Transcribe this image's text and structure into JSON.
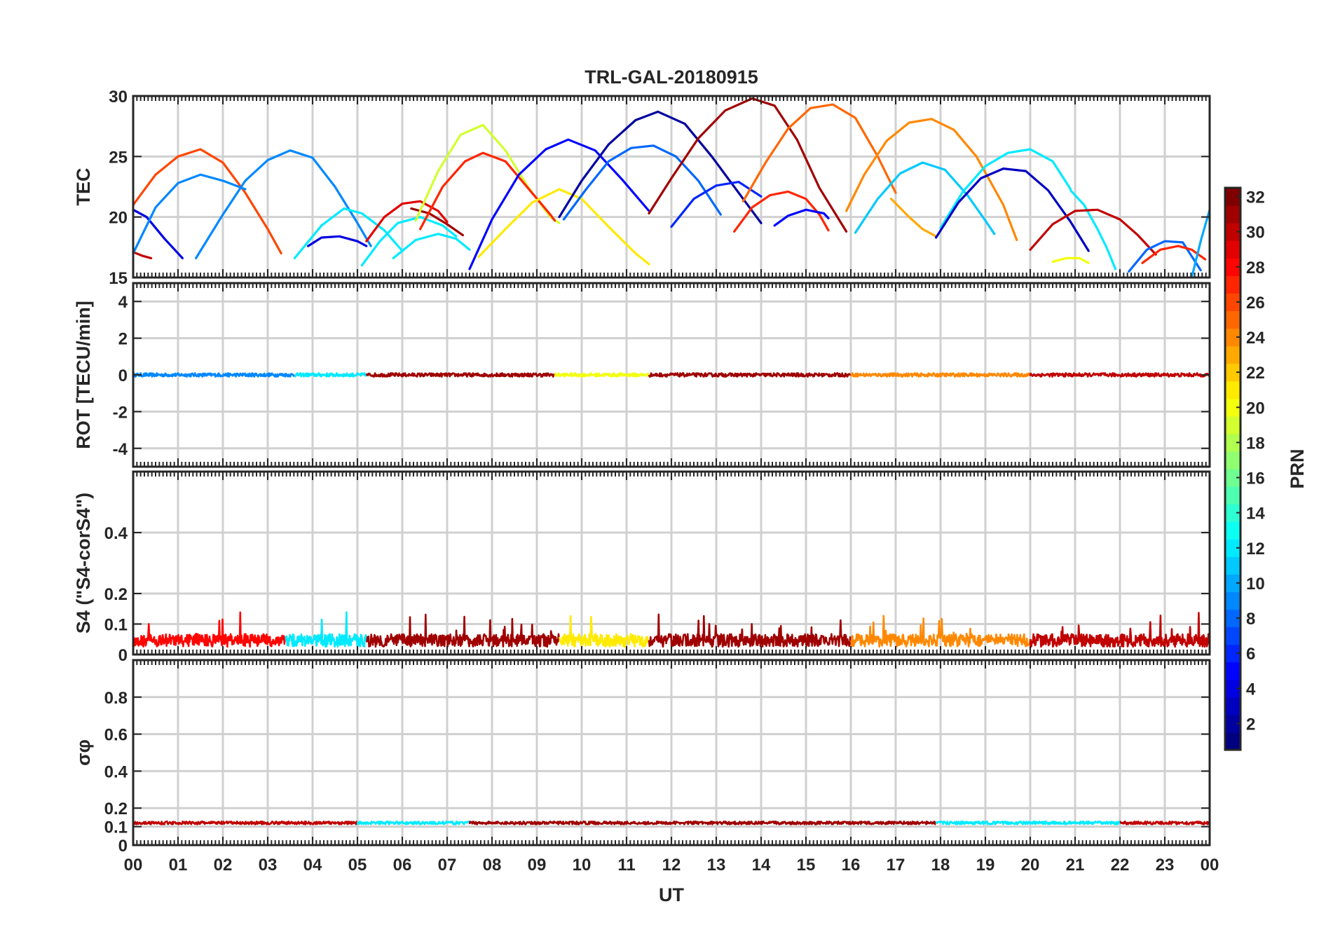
{
  "chart_data": {
    "type": "line",
    "title": "TRL-GAL-20180915",
    "xlabel": "UT",
    "xlim": [
      0,
      24
    ],
    "x_tick_labels": [
      "00",
      "01",
      "02",
      "03",
      "04",
      "05",
      "06",
      "07",
      "08",
      "09",
      "10",
      "11",
      "12",
      "13",
      "14",
      "15",
      "16",
      "17",
      "18",
      "19",
      "20",
      "21",
      "22",
      "23",
      "00"
    ],
    "colorbar": {
      "label": "PRN",
      "range": [
        1,
        32
      ],
      "tick_labels": [
        "2",
        "4",
        "6",
        "8",
        "10",
        "12",
        "14",
        "16",
        "18",
        "20",
        "22",
        "24",
        "26",
        "28",
        "30",
        "32"
      ],
      "colormap": "jet"
    },
    "panels": [
      {
        "id": "tec",
        "ylabel": "TEC",
        "ylim": [
          15,
          30
        ],
        "y_ticks": [
          15,
          20,
          25,
          30
        ],
        "y_tick_labels": [
          "15",
          "20",
          "25",
          "30"
        ],
        "series": [
          {
            "prn": 30,
            "x": [
              0.0,
              0.2,
              0.4
            ],
            "y": [
              17.1,
              16.8,
              16.6
            ]
          },
          {
            "prn": 4,
            "x": [
              0.0,
              0.3,
              0.7,
              1.1
            ],
            "y": [
              20.6,
              20.0,
              18.2,
              16.6
            ]
          },
          {
            "prn": 26,
            "x": [
              0.0,
              0.5,
              1.0,
              1.5,
              2.0,
              2.5,
              3.0,
              3.3
            ],
            "y": [
              21.0,
              23.5,
              25.0,
              25.6,
              24.5,
              22.0,
              19.0,
              17.0
            ]
          },
          {
            "prn": 9,
            "x": [
              0.0,
              0.5,
              1.0,
              1.5,
              2.0,
              2.5
            ],
            "y": [
              17.0,
              20.8,
              22.8,
              23.5,
              23.0,
              22.3
            ]
          },
          {
            "prn": 9,
            "x": [
              1.4,
              2.0,
              2.5,
              3.0,
              3.5,
              4.0,
              4.5,
              5.0,
              5.3
            ],
            "y": [
              16.6,
              20.2,
              23.0,
              24.7,
              25.5,
              24.9,
              22.5,
              19.5,
              17.6
            ]
          },
          {
            "prn": 12,
            "x": [
              3.6,
              4.2,
              4.7,
              5.1,
              5.6,
              6.0
            ],
            "y": [
              16.6,
              19.3,
              20.7,
              20.3,
              18.9,
              17.2
            ]
          },
          {
            "prn": 4,
            "x": [
              3.9,
              4.2,
              4.6,
              5.0,
              5.2
            ],
            "y": [
              17.6,
              18.3,
              18.4,
              18.0,
              17.6
            ]
          },
          {
            "prn": 29,
            "x": [
              5.2,
              5.6,
              6.0,
              6.4,
              6.8,
              7.0
            ],
            "y": [
              18.0,
              20.0,
              21.1,
              21.3,
              20.5,
              19.6
            ]
          },
          {
            "prn": 12,
            "x": [
              5.1,
              5.5,
              5.9,
              6.4,
              6.9,
              7.2
            ],
            "y": [
              16.0,
              18.0,
              19.5,
              20.0,
              19.3,
              18.4
            ]
          },
          {
            "prn": 12,
            "x": [
              5.8,
              6.3,
              6.8,
              7.2,
              7.5
            ],
            "y": [
              16.6,
              18.1,
              18.6,
              18.2,
              17.3
            ]
          },
          {
            "prn": 31,
            "x": [
              6.2,
              6.6,
              7.0,
              7.35
            ],
            "y": [
              20.7,
              20.3,
              19.4,
              18.5
            ]
          },
          {
            "prn": 19,
            "x": [
              6.3,
              6.8,
              7.3,
              7.8,
              8.3,
              8.8,
              9.3,
              9.5
            ],
            "y": [
              19.7,
              23.8,
              26.8,
              27.6,
              25.5,
              22.5,
              20.0,
              19.5
            ]
          },
          {
            "prn": 27,
            "x": [
              6.4,
              6.9,
              7.4,
              7.8,
              8.3,
              8.8,
              9.3,
              9.4
            ],
            "y": [
              19.0,
              22.5,
              24.6,
              25.3,
              24.6,
              22.4,
              20.2,
              19.7
            ]
          },
          {
            "prn": 21,
            "x": [
              7.7,
              8.3,
              8.9,
              9.5,
              10.0,
              10.6,
              11.2,
              11.5
            ],
            "y": [
              16.7,
              19.0,
              21.2,
              22.3,
              21.5,
              19.2,
              17.0,
              16.1
            ]
          },
          {
            "prn": 5,
            "x": [
              7.5,
              8.0,
              8.6,
              9.2,
              9.7,
              10.3,
              10.9,
              11.5
            ],
            "y": [
              15.7,
              19.8,
              23.5,
              25.6,
              26.4,
              25.5,
              23.1,
              20.5
            ]
          },
          {
            "prn": 8,
            "x": [
              9.6,
              10.1,
              10.6,
              11.1,
              11.6,
              12.1,
              12.6,
              13.1
            ],
            "y": [
              19.8,
              22.3,
              24.6,
              25.7,
              25.9,
              25.0,
              23.0,
              20.2
            ]
          },
          {
            "prn": 2,
            "x": [
              9.5,
              10.0,
              10.6,
              11.2,
              11.7,
              12.3,
              12.9,
              13.6,
              14.0
            ],
            "y": [
              20.0,
              23.0,
              26.0,
              28.0,
              28.7,
              27.7,
              25.0,
              21.5,
              19.5
            ]
          },
          {
            "prn": 31,
            "x": [
              11.5,
              12.0,
              12.6,
              13.2,
              13.8,
              14.3,
              14.8,
              15.3,
              15.9
            ],
            "y": [
              20.3,
              23.2,
              26.5,
              28.8,
              29.8,
              29.2,
              26.4,
              22.4,
              18.8
            ]
          },
          {
            "prn": 6,
            "x": [
              12.0,
              12.5,
              13.0,
              13.5,
              14.0
            ],
            "y": [
              19.2,
              21.5,
              22.6,
              22.9,
              21.7
            ]
          },
          {
            "prn": 27,
            "x": [
              13.4,
              13.8,
              14.2,
              14.6,
              15.0,
              15.3,
              15.5
            ],
            "y": [
              18.8,
              20.8,
              21.8,
              22.1,
              21.5,
              20.2,
              18.9
            ]
          },
          {
            "prn": 5,
            "x": [
              14.3,
              14.6,
              15.0,
              15.4,
              15.5
            ],
            "y": [
              19.3,
              20.1,
              20.6,
              20.3,
              19.9
            ]
          },
          {
            "prn": 25,
            "x": [
              13.6,
              14.1,
              14.6,
              15.1,
              15.6,
              16.1,
              16.6,
              17.0
            ],
            "y": [
              21.3,
              24.5,
              27.3,
              29.0,
              29.3,
              28.2,
              25.0,
              22.0
            ]
          },
          {
            "prn": 24,
            "x": [
              15.9,
              16.3,
              16.8,
              17.3,
              17.8,
              18.3,
              18.8,
              19.4,
              19.7
            ],
            "y": [
              20.5,
              23.5,
              26.3,
              27.8,
              28.1,
              27.2,
              25.0,
              21.0,
              18.1
            ]
          },
          {
            "prn": 11,
            "x": [
              16.1,
              16.6,
              17.1,
              17.6,
              18.1,
              18.6,
              19.0,
              19.2
            ],
            "y": [
              18.7,
              21.5,
              23.6,
              24.5,
              23.9,
              21.8,
              19.7,
              18.6
            ]
          },
          {
            "prn": 23,
            "x": [
              16.9,
              17.3,
              17.6,
              17.9
            ],
            "y": [
              21.5,
              20.0,
              19.0,
              18.4
            ]
          },
          {
            "prn": 12,
            "x": [
              18.0,
              18.5,
              19.0,
              19.5,
              20.0,
              20.5,
              20.9
            ],
            "y": [
              19.1,
              22.1,
              24.2,
              25.3,
              25.6,
              24.6,
              22.3
            ]
          },
          {
            "prn": 3,
            "x": [
              17.9,
              18.4,
              18.9,
              19.4,
              19.9,
              20.4,
              20.9,
              21.3
            ],
            "y": [
              18.3,
              21.2,
              23.2,
              24.0,
              23.8,
              22.2,
              19.6,
              17.2
            ]
          },
          {
            "prn": 12,
            "x": [
              20.9,
              21.2,
              21.5,
              21.7,
              21.9
            ],
            "y": [
              22.2,
              21.0,
              19.0,
              17.5,
              15.7
            ]
          },
          {
            "prn": 30,
            "x": [
              20.0,
              20.5,
              21.0,
              21.5,
              22.0,
              22.4,
              22.8
            ],
            "y": [
              17.3,
              19.4,
              20.5,
              20.6,
              19.8,
              18.5,
              16.9
            ]
          },
          {
            "prn": 20,
            "x": [
              20.5,
              20.8,
              21.1,
              21.3
            ],
            "y": [
              16.3,
              16.6,
              16.6,
              16.2
            ]
          },
          {
            "prn": 8,
            "x": [
              22.2,
              22.6,
              23.0,
              23.4,
              23.8
            ],
            "y": [
              15.5,
              17.3,
              18.0,
              17.9,
              15.6
            ]
          },
          {
            "prn": 27,
            "x": [
              22.5,
              22.9,
              23.3,
              23.6,
              23.9
            ],
            "y": [
              16.2,
              17.3,
              17.6,
              17.3,
              16.5
            ]
          },
          {
            "prn": 10,
            "x": [
              23.6,
              23.8,
              24.0
            ],
            "y": [
              15.0,
              18.0,
              20.6
            ]
          }
        ]
      },
      {
        "id": "rot",
        "ylabel": "ROT [TECU/min]",
        "ylim": [
          -5,
          5
        ],
        "y_ticks": [
          -4,
          -2,
          0,
          2,
          4
        ],
        "y_tick_labels": [
          "-4",
          "-2",
          "0",
          "2",
          "4"
        ],
        "baseline": 0,
        "noise_amplitude": 0.1,
        "segments": [
          {
            "prn": 9,
            "x0": 0.0,
            "x1": 3.6
          },
          {
            "prn": 12,
            "x0": 3.6,
            "x1": 5.2
          },
          {
            "prn": 31,
            "x0": 5.2,
            "x1": 9.4
          },
          {
            "prn": 20,
            "x0": 9.4,
            "x1": 11.5
          },
          {
            "prn": 31,
            "x0": 11.5,
            "x1": 16.0
          },
          {
            "prn": 24,
            "x0": 16.0,
            "x1": 20.0
          },
          {
            "prn": 30,
            "x0": 20.0,
            "x1": 24.0
          }
        ]
      },
      {
        "id": "s4",
        "ylabel": "S4 (\"S4-corS4\")",
        "ylim": [
          0,
          0.6
        ],
        "y_ticks": [
          0,
          0.1,
          0.2,
          0.4
        ],
        "y_tick_labels": [
          "0",
          "0.1",
          "0.2",
          "0.4"
        ],
        "baseline": 0.04,
        "noise_amplitude": 0.06,
        "segments": [
          {
            "prn": 28,
            "x0": 0.0,
            "x1": 3.4
          },
          {
            "prn": 12,
            "x0": 3.4,
            "x1": 5.2
          },
          {
            "prn": 31,
            "x0": 5.2,
            "x1": 9.5
          },
          {
            "prn": 21,
            "x0": 9.5,
            "x1": 11.5
          },
          {
            "prn": 31,
            "x0": 11.5,
            "x1": 16.0
          },
          {
            "prn": 24,
            "x0": 16.0,
            "x1": 20.0
          },
          {
            "prn": 30,
            "x0": 20.0,
            "x1": 24.0
          }
        ]
      },
      {
        "id": "sigma_phi",
        "ylabel": "σφ",
        "ylim": [
          0,
          1
        ],
        "y_ticks": [
          0,
          0.1,
          0.2,
          0.4,
          0.6,
          0.8
        ],
        "y_tick_labels": [
          "0",
          "0.1",
          "0.2",
          "0.4",
          "0.6",
          "0.8"
        ],
        "baseline": 0.12,
        "noise_amplitude": 0.008,
        "segments": [
          {
            "prn": 30,
            "x0": 0.0,
            "x1": 5.0
          },
          {
            "prn": 12,
            "x0": 5.0,
            "x1": 7.5
          },
          {
            "prn": 31,
            "x0": 7.5,
            "x1": 17.9
          },
          {
            "prn": 12,
            "x0": 17.9,
            "x1": 22.0
          },
          {
            "prn": 30,
            "x0": 22.0,
            "x1": 24.0
          }
        ]
      }
    ]
  }
}
